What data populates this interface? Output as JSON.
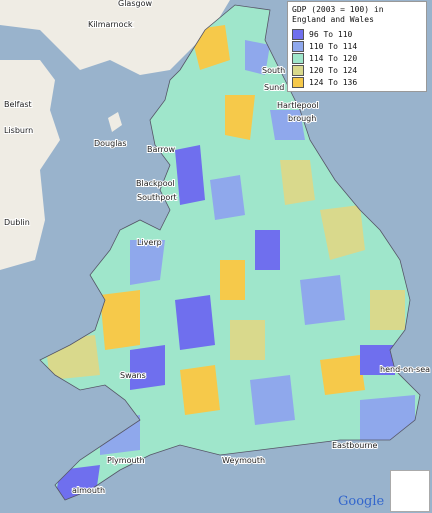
{
  "legend": {
    "title": "GDP (2003 = 100) in England and Wales",
    "items": [
      {
        "label": "96 To 110",
        "color": "#6f6fee"
      },
      {
        "label": "110 To 114",
        "color": "#8fa8ec"
      },
      {
        "label": "114 To 120",
        "color": "#9fe6cb"
      },
      {
        "label": "120 To 124",
        "color": "#d9d98c"
      },
      {
        "label": "124 To 136",
        "color": "#f6c94a"
      }
    ]
  },
  "places": [
    "Glasgow",
    "Kilmarnock",
    "Belfast",
    "Lisburn",
    "Dublin",
    "Douglas",
    "Blackpool",
    "Southport",
    "Liverp",
    "Hartlepool",
    "South Shield",
    "Sund",
    "brough",
    "Barrow",
    "Swans",
    "hend-on-sea",
    "Eastbourne",
    "Weymouth",
    "Plymouth",
    "almouth"
  ],
  "attribution": "Google"
}
